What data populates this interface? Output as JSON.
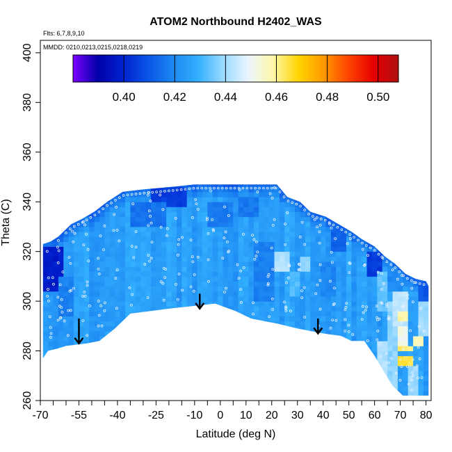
{
  "chart_data": {
    "type": "heatmap",
    "title": "ATOM2 Northbound H2402_WAS",
    "flights_label": "Flts: 6,7,8,9,10",
    "dates_label": "MMDD: 0210,0213,0215,0218,0219",
    "xlabel": "Latitude (deg N)",
    "ylabel": "Theta (C)",
    "xlim": [
      -70,
      82
    ],
    "ylim": [
      260,
      405
    ],
    "x_tick_labels": [
      "-70",
      "-55",
      "-40",
      "-25",
      "-10",
      "0",
      "10",
      "20",
      "30",
      "40",
      "50",
      "60",
      "70",
      "80"
    ],
    "x_label_positions": [
      -70,
      -55,
      -40,
      -25,
      -10,
      0,
      10,
      20,
      30,
      40,
      50,
      60,
      70,
      80
    ],
    "x_minor_ticks": [
      -70,
      -65,
      -60,
      -55,
      -50,
      -45,
      -40,
      -35,
      -30,
      -25,
      -20,
      -15,
      -10,
      -5,
      0,
      5,
      10,
      15,
      20,
      25,
      30,
      35,
      40,
      45,
      50,
      55,
      60,
      65,
      70,
      75,
      80
    ],
    "y_ticks": [
      260,
      280,
      300,
      320,
      340,
      360,
      380,
      400
    ],
    "colorbar": {
      "range": [
        0.38,
        0.508
      ],
      "ticks": [
        0.4,
        0.42,
        0.44,
        0.46,
        0.48,
        0.5
      ],
      "tick_labels": [
        "0.40",
        "0.42",
        "0.44",
        "0.46",
        "0.48",
        "0.50"
      ],
      "colors": [
        "#7b00ff",
        "#0000a8",
        "#0022d0",
        "#0a55e6",
        "#1d88f2",
        "#33b0ff",
        "#9ad9ff",
        "#eaf6ff",
        "#fff7a8",
        "#ffd400",
        "#ff9900",
        "#ff4400",
        "#e60000",
        "#b01010"
      ]
    },
    "domain_bottom": [
      [
        -69,
        277
      ],
      [
        -67,
        280
      ],
      [
        -63,
        281
      ],
      [
        -60,
        282
      ],
      [
        -52,
        283
      ],
      [
        -47,
        284
      ],
      [
        -41,
        289
      ],
      [
        -35,
        295
      ],
      [
        -20,
        297
      ],
      [
        -2,
        299
      ],
      [
        6,
        296
      ],
      [
        12,
        293
      ],
      [
        17,
        292
      ],
      [
        22,
        291
      ],
      [
        30,
        289
      ],
      [
        40,
        287
      ],
      [
        47,
        286
      ],
      [
        51,
        284
      ],
      [
        56,
        284
      ],
      [
        60,
        278
      ],
      [
        64,
        271
      ],
      [
        67,
        266
      ],
      [
        71,
        262
      ],
      [
        79,
        262
      ],
      [
        81,
        262
      ]
    ],
    "domain_top": [
      [
        -69,
        323
      ],
      [
        -66,
        324
      ],
      [
        -63,
        326
      ],
      [
        -58,
        331
      ],
      [
        -54,
        333
      ],
      [
        -49,
        336
      ],
      [
        -44,
        340
      ],
      [
        -38,
        344
      ],
      [
        -30,
        345
      ],
      [
        -19,
        346
      ],
      [
        -10,
        347
      ],
      [
        0,
        347
      ],
      [
        10,
        347
      ],
      [
        18,
        347
      ],
      [
        22,
        347
      ],
      [
        26,
        342
      ],
      [
        31,
        340
      ],
      [
        35,
        336
      ],
      [
        41,
        334
      ],
      [
        46,
        331
      ],
      [
        51,
        328
      ],
      [
        55,
        325
      ],
      [
        60,
        322
      ],
      [
        64,
        318
      ],
      [
        68,
        315
      ],
      [
        72,
        311
      ],
      [
        76,
        309
      ],
      [
        80,
        308
      ],
      [
        81,
        306
      ]
    ],
    "base_value": 0.425,
    "patches": [
      {
        "lat": [
          -69,
          -60
        ],
        "theta": [
          305,
          323
        ],
        "value": 0.398
      },
      {
        "lat": [
          -62,
          -57
        ],
        "theta": [
          295,
          310
        ],
        "value": 0.418
      },
      {
        "lat": [
          -26,
          -12
        ],
        "theta": [
          338,
          346
        ],
        "value": 0.405
      },
      {
        "lat": [
          -35,
          -20
        ],
        "theta": [
          330,
          340
        ],
        "value": 0.415
      },
      {
        "lat": [
          -5,
          5
        ],
        "theta": [
          330,
          340
        ],
        "value": 0.417
      },
      {
        "lat": [
          8,
          15
        ],
        "theta": [
          335,
          342
        ],
        "value": 0.416
      },
      {
        "lat": [
          14,
          22
        ],
        "theta": [
          300,
          325
        ],
        "value": 0.418
      },
      {
        "lat": [
          22,
          28
        ],
        "theta": [
          313,
          321
        ],
        "value": 0.442
      },
      {
        "lat": [
          27,
          32
        ],
        "theta": [
          302,
          312
        ],
        "value": 0.432
      },
      {
        "lat": [
          31,
          36
        ],
        "theta": [
          312,
          318
        ],
        "value": 0.438
      },
      {
        "lat": [
          40,
          46
        ],
        "theta": [
          302,
          316
        ],
        "value": 0.419
      },
      {
        "lat": [
          44,
          50
        ],
        "theta": [
          320,
          330
        ],
        "value": 0.412
      },
      {
        "lat": [
          57,
          63
        ],
        "theta": [
          310,
          320
        ],
        "value": 0.405
      },
      {
        "lat": [
          62,
          66
        ],
        "theta": [
          296,
          312
        ],
        "value": 0.434
      },
      {
        "lat": [
          61,
          66
        ],
        "theta": [
          262,
          285
        ],
        "value": 0.442
      },
      {
        "lat": [
          66,
          70
        ],
        "theta": [
          262,
          300
        ],
        "value": 0.438
      },
      {
        "lat": [
          68,
          74
        ],
        "theta": [
          290,
          304
        ],
        "value": 0.444
      },
      {
        "lat": [
          70,
          74
        ],
        "theta": [
          280,
          290
        ],
        "value": 0.452
      },
      {
        "lat": [
          70,
          74
        ],
        "theta": [
          293,
          296
        ],
        "value": 0.458
      },
      {
        "lat": [
          69,
          75
        ],
        "theta": [
          274,
          278
        ],
        "value": 0.465
      },
      {
        "lat": [
          69,
          76
        ],
        "theta": [
          281,
          283
        ],
        "value": 0.462
      },
      {
        "lat": [
          76,
          80
        ],
        "theta": [
          282,
          286
        ],
        "value": 0.458
      },
      {
        "lat": [
          77,
          81
        ],
        "theta": [
          286,
          300
        ],
        "value": 0.44
      },
      {
        "lat": [
          78,
          81
        ],
        "theta": [
          300,
          308
        ],
        "value": 0.41
      },
      {
        "lat": [
          74,
          78
        ],
        "theta": [
          262,
          274
        ],
        "value": 0.44
      },
      {
        "lat": [
          66,
          72
        ],
        "theta": [
          304,
          312
        ],
        "value": 0.42
      }
    ],
    "arrows": [
      {
        "lat": -55,
        "theta_from": 293,
        "theta_to": 283
      },
      {
        "lat": -8,
        "theta_from": 303,
        "theta_to": 297
      },
      {
        "lat": 38,
        "theta_from": 293,
        "theta_to": 287
      }
    ]
  }
}
